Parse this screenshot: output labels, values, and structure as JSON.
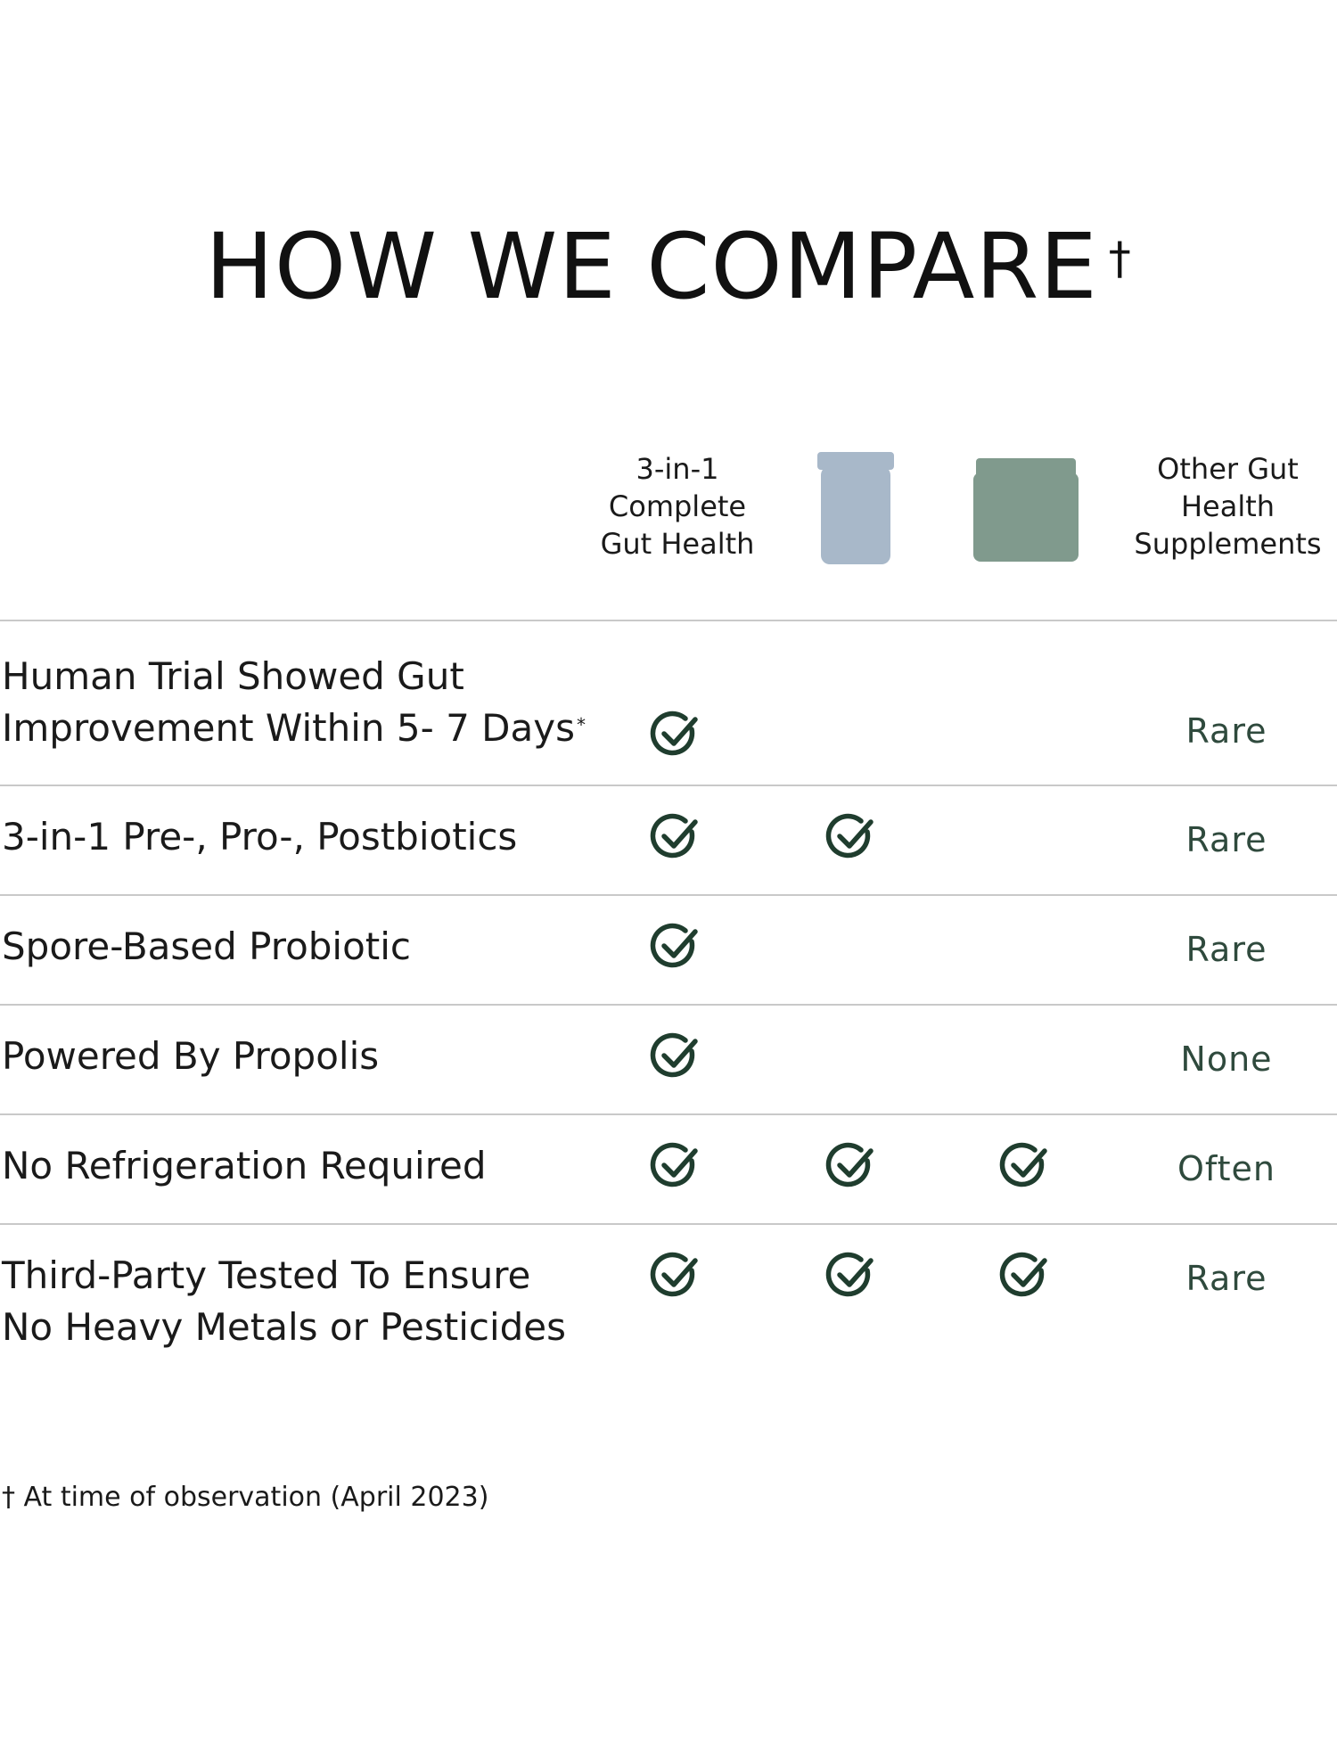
{
  "title": "HOW WE COMPARE",
  "title_mark": "†",
  "columns": {
    "ours_label": "3-in-1\nComplete\nGut Health",
    "jar_blue_icon": "bottle-icon",
    "jar_green_icon": "jar-icon",
    "other_label": "Other Gut\nHealth\nSupplements"
  },
  "colors": {
    "check": "#1f3d2e",
    "other_text": "#2f4a3d",
    "jar_blue": "#a8b8c9",
    "jar_green": "#809a8d",
    "rule": "#c9c9c9"
  },
  "rows": [
    {
      "label": "Human Trial Showed Gut\nImprovement Within 5- 7 Days",
      "mark": "*",
      "c1": true,
      "c2": false,
      "c3": false,
      "other": "Rare"
    },
    {
      "label": "3-in-1 Pre-, Pro-, Postbiotics",
      "mark": "",
      "c1": true,
      "c2": true,
      "c3": false,
      "other": "Rare"
    },
    {
      "label": "Spore-Based Probiotic",
      "mark": "",
      "c1": true,
      "c2": false,
      "c3": false,
      "other": "Rare"
    },
    {
      "label": "Powered By Propolis",
      "mark": "",
      "c1": true,
      "c2": false,
      "c3": false,
      "other": "None"
    },
    {
      "label": "No Refrigeration Required",
      "mark": "",
      "c1": true,
      "c2": true,
      "c3": true,
      "other": "Often"
    },
    {
      "label": "Third-Party Tested To Ensure\nNo Heavy Metals or Pesticides",
      "mark": "",
      "c1": true,
      "c2": true,
      "c3": true,
      "other": "Rare"
    }
  ],
  "footnote": "† At time of observation (April 2023)"
}
